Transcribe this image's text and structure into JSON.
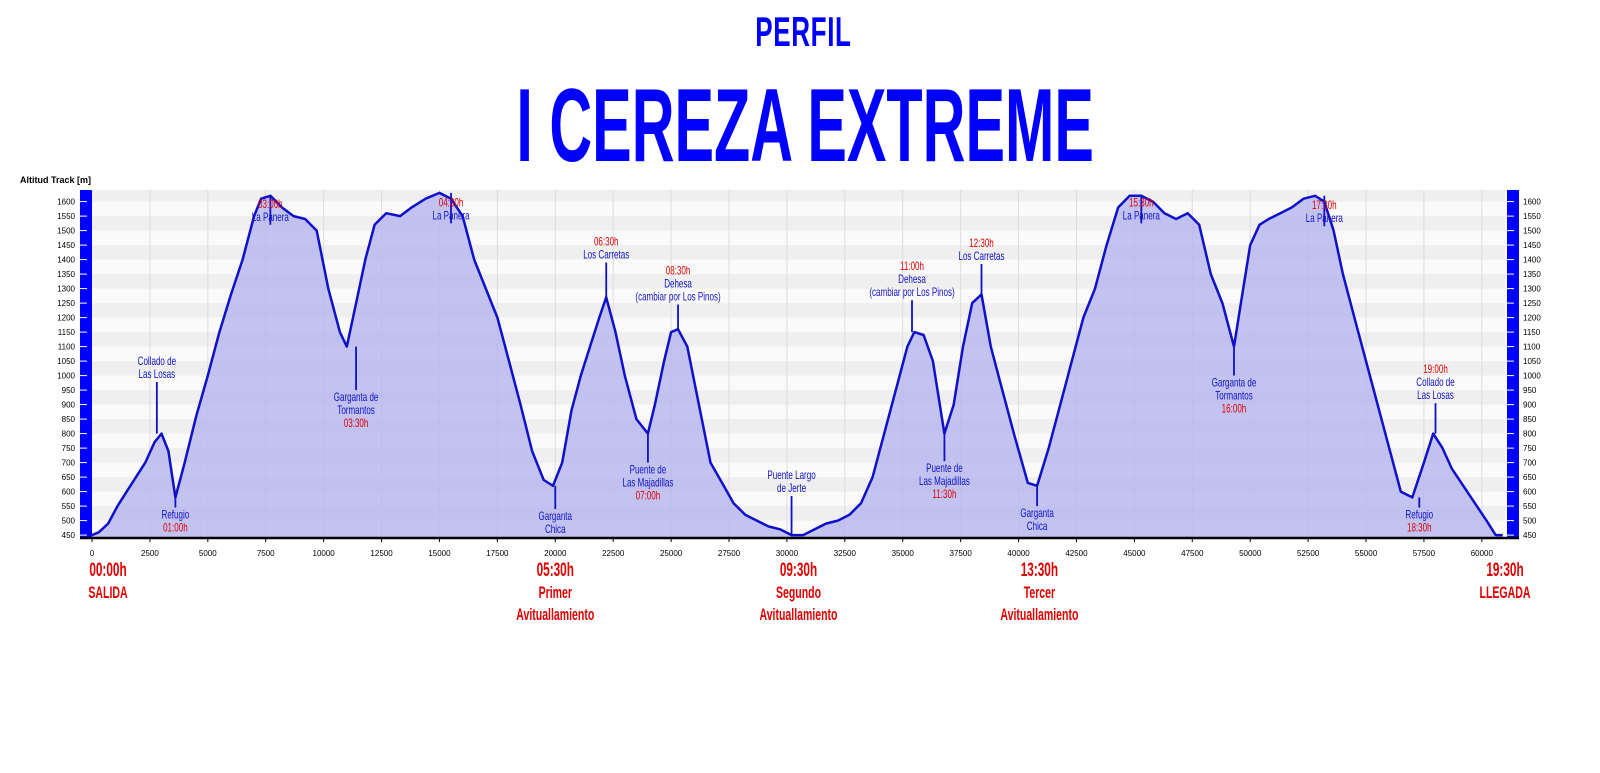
{
  "header": {
    "subtitle": "PERFIL",
    "title": "I CEREZA EXTREME"
  },
  "chart_data": {
    "type": "area",
    "title": "I CEREZA EXTREME",
    "subtitle": "PERFIL",
    "ylabel": "Altitud Track [m]",
    "xlabel": "",
    "xlim": [
      0,
      61000
    ],
    "ylim": [
      440,
      1640
    ],
    "grid": true,
    "fill_color": "#b8b8f0",
    "line_color": "#1010c8",
    "accent_color": "#0000ff",
    "time_color": "#e00000",
    "x_ticks": [
      0,
      2500,
      5000,
      7500,
      10000,
      12500,
      15000,
      17500,
      20000,
      22500,
      25000,
      27500,
      30000,
      32500,
      35000,
      37500,
      40000,
      42500,
      45000,
      47500,
      50000,
      52500,
      55000,
      57500,
      60000
    ],
    "y_ticks": [
      450,
      500,
      550,
      600,
      650,
      700,
      750,
      800,
      850,
      900,
      950,
      1000,
      1050,
      1100,
      1150,
      1200,
      1250,
      1300,
      1350,
      1400,
      1450,
      1500,
      1550,
      1600
    ],
    "series": [
      {
        "x": [
          0,
          300,
          700,
          1100,
          1500,
          1900,
          2300,
          2700,
          3000,
          3300,
          3600,
          4000,
          4500,
          5000,
          5500,
          6000,
          6500,
          7000,
          7300,
          7700,
          8200,
          8700,
          9200,
          9700,
          10200,
          10700,
          11000,
          11400,
          11800,
          12200,
          12700,
          13300,
          13800,
          14400,
          15000,
          15500,
          16000,
          16500,
          17000,
          17500,
          18000,
          18500,
          19000,
          19500,
          19900,
          20300,
          20700,
          21100,
          21500,
          21900,
          22200,
          22600,
          23000,
          23500,
          24000,
          24300,
          24700,
          25000,
          25300,
          25700,
          26200,
          26700,
          27200,
          27700,
          28200,
          28700,
          29200,
          29700,
          30200,
          30700,
          31200,
          31700,
          32200,
          32700,
          33200,
          33700,
          34200,
          34700,
          35200,
          35500,
          35900,
          36300,
          36800,
          37200,
          37600,
          38000,
          38400,
          38800,
          39300,
          39800,
          40400,
          40800,
          41300,
          41800,
          42300,
          42800,
          43300,
          43800,
          44300,
          44800,
          45300,
          45800,
          46300,
          46800,
          47300,
          47800,
          48300,
          48800,
          49300,
          49600,
          50000,
          50400,
          50800,
          51300,
          51800,
          52300,
          52800,
          53200,
          53600,
          54000,
          54500,
          55000,
          55500,
          56000,
          56500,
          57000,
          57500,
          57900,
          58300,
          58700,
          59200,
          59700,
          60200,
          60600,
          60900
        ],
        "y": [
          450,
          460,
          490,
          550,
          600,
          650,
          700,
          770,
          800,
          740,
          580,
          700,
          860,
          1000,
          1150,
          1280,
          1400,
          1550,
          1610,
          1620,
          1580,
          1550,
          1540,
          1500,
          1300,
          1150,
          1100,
          1250,
          1400,
          1520,
          1560,
          1550,
          1580,
          1610,
          1630,
          1610,
          1550,
          1400,
          1300,
          1200,
          1050,
          900,
          740,
          640,
          620,
          700,
          880,
          1000,
          1100,
          1200,
          1270,
          1150,
          1000,
          850,
          800,
          900,
          1050,
          1150,
          1160,
          1100,
          900,
          700,
          630,
          560,
          520,
          500,
          480,
          470,
          450,
          450,
          470,
          490,
          500,
          520,
          560,
          650,
          800,
          950,
          1100,
          1150,
          1140,
          1050,
          800,
          900,
          1100,
          1250,
          1280,
          1100,
          950,
          800,
          630,
          620,
          750,
          900,
          1050,
          1200,
          1300,
          1450,
          1580,
          1620,
          1620,
          1600,
          1560,
          1540,
          1560,
          1520,
          1350,
          1250,
          1100,
          1250,
          1450,
          1520,
          1540,
          1560,
          1580,
          1610,
          1620,
          1600,
          1500,
          1350,
          1200,
          1050,
          900,
          750,
          600,
          580,
          700,
          800,
          750,
          680,
          620,
          560,
          500,
          450,
          450
        ]
      }
    ],
    "annotations": [
      {
        "x": 2800,
        "y": 800,
        "stem": 978,
        "label_pos": "above",
        "lines": [
          "Collado de",
          "Las Losas"
        ],
        "time": ""
      },
      {
        "x": 3600,
        "y": 580,
        "stem": 545,
        "label_pos": "below",
        "lines": [
          "Refugio"
        ],
        "time": "01:00h"
      },
      {
        "x": 7700,
        "y": 1620,
        "stem": 1520,
        "label_pos": "above",
        "lines": [
          "La Panera"
        ],
        "time": "03:00h"
      },
      {
        "x": 11400,
        "y": 1100,
        "stem": 950,
        "label_pos": "below",
        "lines": [
          "Garganta de",
          "Tormantos"
        ],
        "time": "03:30h"
      },
      {
        "x": 15500,
        "y": 1630,
        "stem": 1525,
        "label_pos": "above",
        "lines": [
          "La Panera"
        ],
        "time": "04:30h"
      },
      {
        "x": 20000,
        "y": 620,
        "stem": 540,
        "label_pos": "below",
        "lines": [
          "Garganta",
          "Chica"
        ],
        "time": ""
      },
      {
        "x": 22200,
        "y": 1270,
        "stem": 1390,
        "label_pos": "above",
        "lines": [
          "Los Carretas"
        ],
        "time": "06:30h"
      },
      {
        "x": 25300,
        "y": 1160,
        "stem": 1245,
        "label_pos": "above",
        "lines": [
          "Dehesa",
          "(cambiar por Los Pinos)"
        ],
        "time": "08:30h"
      },
      {
        "x": 24000,
        "y": 800,
        "stem": 700,
        "label_pos": "below",
        "lines": [
          "Puente de",
          "Las Majadillas"
        ],
        "time": "07:00h"
      },
      {
        "x": 30200,
        "y": 450,
        "stem": 585,
        "label_pos": "above",
        "lines": [
          "Puente Largo",
          "de Jerte"
        ],
        "time": ""
      },
      {
        "x": 35400,
        "y": 1150,
        "stem": 1260,
        "label_pos": "above",
        "lines": [
          "Dehesa",
          "(cambiar por Los Pinos)"
        ],
        "time": "11:00h"
      },
      {
        "x": 36800,
        "y": 800,
        "stem": 705,
        "label_pos": "below",
        "lines": [
          "Puente de",
          "Las Majadillas"
        ],
        "time": "11:30h"
      },
      {
        "x": 38400,
        "y": 1280,
        "stem": 1385,
        "label_pos": "above",
        "lines": [
          "Los Carretas"
        ],
        "time": "12:30h"
      },
      {
        "x": 40800,
        "y": 620,
        "stem": 550,
        "label_pos": "below",
        "lines": [
          "Garganta",
          "Chica"
        ],
        "time": ""
      },
      {
        "x": 45300,
        "y": 1620,
        "stem": 1525,
        "label_pos": "above",
        "lines": [
          "La Panera"
        ],
        "time": "15:30h"
      },
      {
        "x": 49300,
        "y": 1100,
        "stem": 1000,
        "label_pos": "below",
        "lines": [
          "Garganta de",
          "Tormantos"
        ],
        "time": "16:00h"
      },
      {
        "x": 53200,
        "y": 1620,
        "stem": 1515,
        "label_pos": "above",
        "lines": [
          "La Panera"
        ],
        "time": "17:30h"
      },
      {
        "x": 57300,
        "y": 580,
        "stem": 545,
        "label_pos": "below",
        "lines": [
          "Refugio"
        ],
        "time": "18:30h"
      },
      {
        "x": 58000,
        "y": 800,
        "stem": 905,
        "label_pos": "above",
        "lines": [
          "Collado de",
          "Las Losas"
        ],
        "time": "19:00h"
      }
    ],
    "checkpoints": [
      {
        "x": 0,
        "time": "00:00h",
        "lines": [
          "SALIDA"
        ]
      },
      {
        "x": 20000,
        "time": "05:30h",
        "lines": [
          "Primer",
          "Avituallamiento"
        ]
      },
      {
        "x": 30500,
        "time": "09:30h",
        "lines": [
          "Segundo",
          "Avituallamiento"
        ]
      },
      {
        "x": 40900,
        "time": "13:30h",
        "lines": [
          "Tercer",
          "Avituallamiento"
        ]
      },
      {
        "x": 61000,
        "time": "19:30h",
        "lines": [
          "LLEGADA"
        ]
      }
    ]
  }
}
